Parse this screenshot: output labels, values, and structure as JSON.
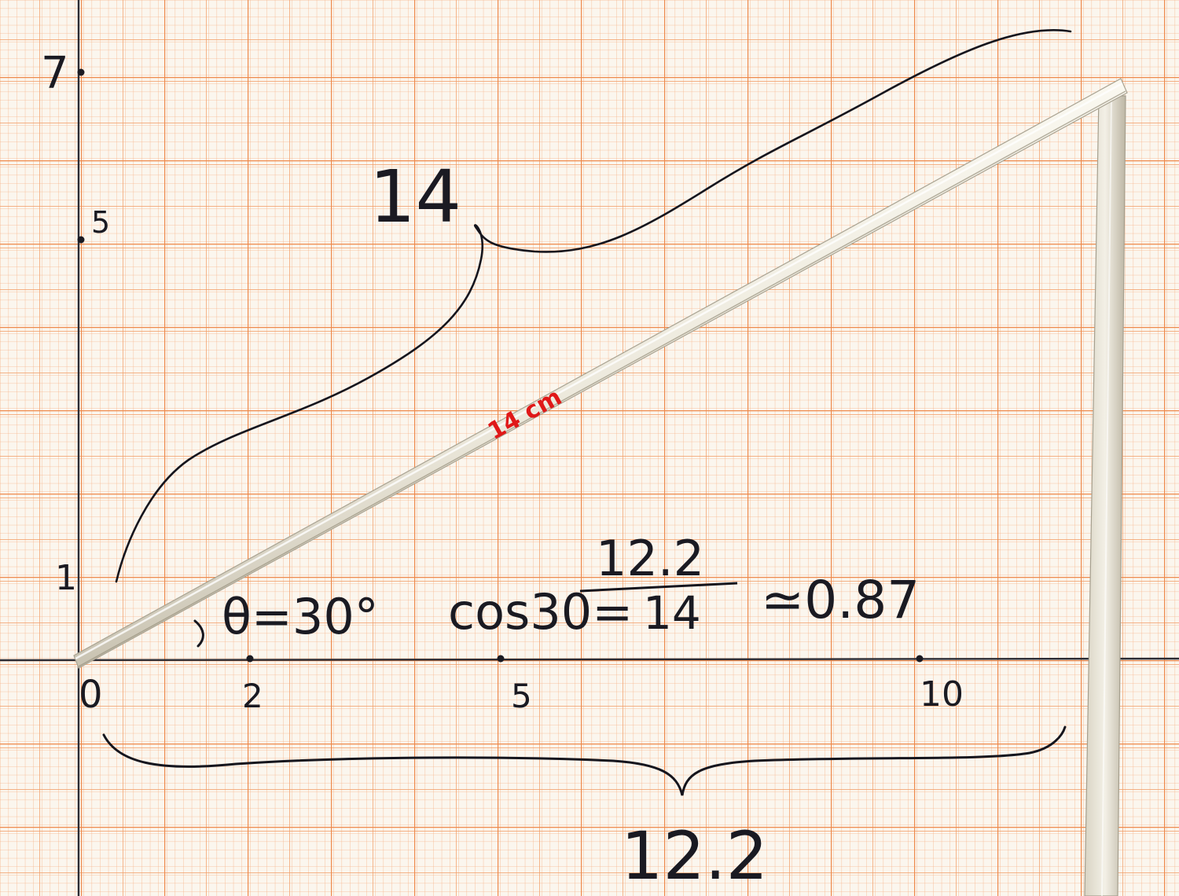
{
  "colors": {
    "paper": "#fbf6ee",
    "grid_fine": "#f7b48a",
    "grid_medium": "#f19a62",
    "grid_major": "#ee8a4c",
    "ink": "#1a1a22",
    "red_ink": "#e01818",
    "stick": "#efece2",
    "stick_shadow": "#b9b3a4"
  },
  "axes": {
    "y_ticks": [
      "7",
      "5",
      "1"
    ],
    "x_ticks": [
      "0",
      "2",
      "5",
      "10"
    ]
  },
  "annotations": {
    "hypotenuse_label": "14",
    "stick_label": "14 cm",
    "angle_label": "θ=30°",
    "equation_lhs": "cos30=",
    "fraction_numerator": "12.2",
    "fraction_denominator": "14",
    "equation_rhs": "≃0.87",
    "base_label": "12.2"
  }
}
